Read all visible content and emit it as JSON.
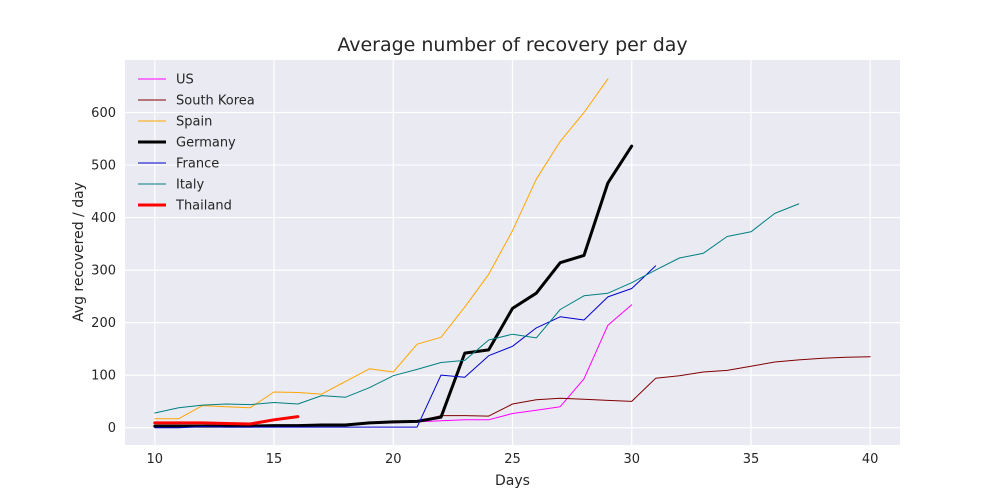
{
  "chart_data": {
    "type": "line",
    "title": "Average number of recovery per day",
    "xlabel": "Days",
    "ylabel": "Avg recovered / day",
    "xlim": [
      8.75,
      41.25
    ],
    "ylim": [
      -33,
      700
    ],
    "xticks": [
      10,
      15,
      20,
      25,
      30,
      35,
      40
    ],
    "yticks": [
      0,
      100,
      200,
      300,
      400,
      500,
      600
    ],
    "grid": true,
    "legend_position": "top-left",
    "background": "#eaeaf2",
    "series": [
      {
        "name": "US",
        "color": "#ff00ff",
        "width": 1,
        "x": [
          10,
          11,
          12,
          13,
          14,
          15,
          16,
          17,
          18,
          19,
          20,
          21,
          22,
          23,
          24,
          25,
          26,
          27,
          28,
          29,
          30
        ],
        "y": [
          2,
          2,
          3,
          3,
          3,
          4,
          4,
          5,
          6,
          8,
          9,
          11,
          13,
          15,
          15,
          27,
          33,
          40,
          93,
          195,
          234
        ]
      },
      {
        "name": "South Korea",
        "color": "#800000",
        "width": 1,
        "x": [
          10,
          11,
          12,
          13,
          14,
          15,
          16,
          17,
          18,
          19,
          20,
          21,
          22,
          23,
          24,
          25,
          26,
          27,
          28,
          29,
          30,
          31,
          32,
          33,
          34,
          35,
          36,
          37,
          38,
          39,
          40
        ],
        "y": [
          2,
          3,
          4,
          4,
          4,
          5,
          5,
          6,
          7,
          9,
          10,
          12,
          23,
          23,
          22,
          45,
          53,
          56,
          54,
          52,
          50,
          94,
          99,
          106,
          109,
          117,
          125,
          129,
          132,
          134,
          135
        ]
      },
      {
        "name": "Spain",
        "color": "#ffa500",
        "width": 1,
        "x": [
          10,
          11,
          12,
          13,
          14,
          15,
          16,
          17,
          18,
          19,
          20,
          21,
          22,
          23,
          24,
          25,
          26,
          27,
          28,
          29
        ],
        "y": [
          17,
          17,
          42,
          40,
          38,
          68,
          67,
          64,
          88,
          112,
          106,
          159,
          172,
          230,
          292,
          375,
          473,
          545,
          600,
          664
        ]
      },
      {
        "name": "Germany",
        "color": "#000000",
        "width": 3,
        "x": [
          10,
          11,
          12,
          13,
          14,
          15,
          16,
          17,
          18,
          19,
          20,
          21,
          22,
          23,
          24,
          25,
          26,
          27,
          28,
          29,
          30
        ],
        "y": [
          3,
          3,
          3,
          3,
          3,
          4,
          4,
          5,
          5,
          9,
          11,
          12,
          20,
          142,
          148,
          227,
          256,
          314,
          328,
          466,
          536
        ]
      },
      {
        "name": "France",
        "color": "#0000cd",
        "width": 1,
        "x": [
          10,
          11,
          12,
          13,
          14,
          15,
          16,
          17,
          18,
          19,
          20,
          21,
          22,
          23,
          24,
          25,
          26,
          27,
          28,
          29,
          30,
          31
        ],
        "y": [
          0,
          0,
          2,
          1,
          1,
          1,
          1,
          1,
          1,
          1,
          1,
          1,
          100,
          96,
          137,
          155,
          190,
          211,
          205,
          249,
          265,
          308
        ]
      },
      {
        "name": "Italy",
        "color": "#008080",
        "width": 1,
        "x": [
          10,
          11,
          12,
          13,
          14,
          15,
          16,
          17,
          18,
          19,
          20,
          21,
          22,
          23,
          24,
          25,
          26,
          27,
          28,
          29,
          30,
          31,
          32,
          33,
          34,
          35,
          36,
          37
        ],
        "y": [
          28,
          38,
          43,
          45,
          44,
          48,
          45,
          61,
          58,
          76,
          99,
          111,
          124,
          128,
          167,
          178,
          171,
          225,
          251,
          256,
          276,
          300,
          323,
          332,
          364,
          373,
          408,
          426
        ]
      },
      {
        "name": "Thailand",
        "color": "#ff0000",
        "width": 3,
        "x": [
          10,
          11,
          12,
          13,
          14,
          15,
          16
        ],
        "y": [
          9,
          9,
          9,
          8,
          7,
          15,
          21
        ]
      }
    ]
  }
}
